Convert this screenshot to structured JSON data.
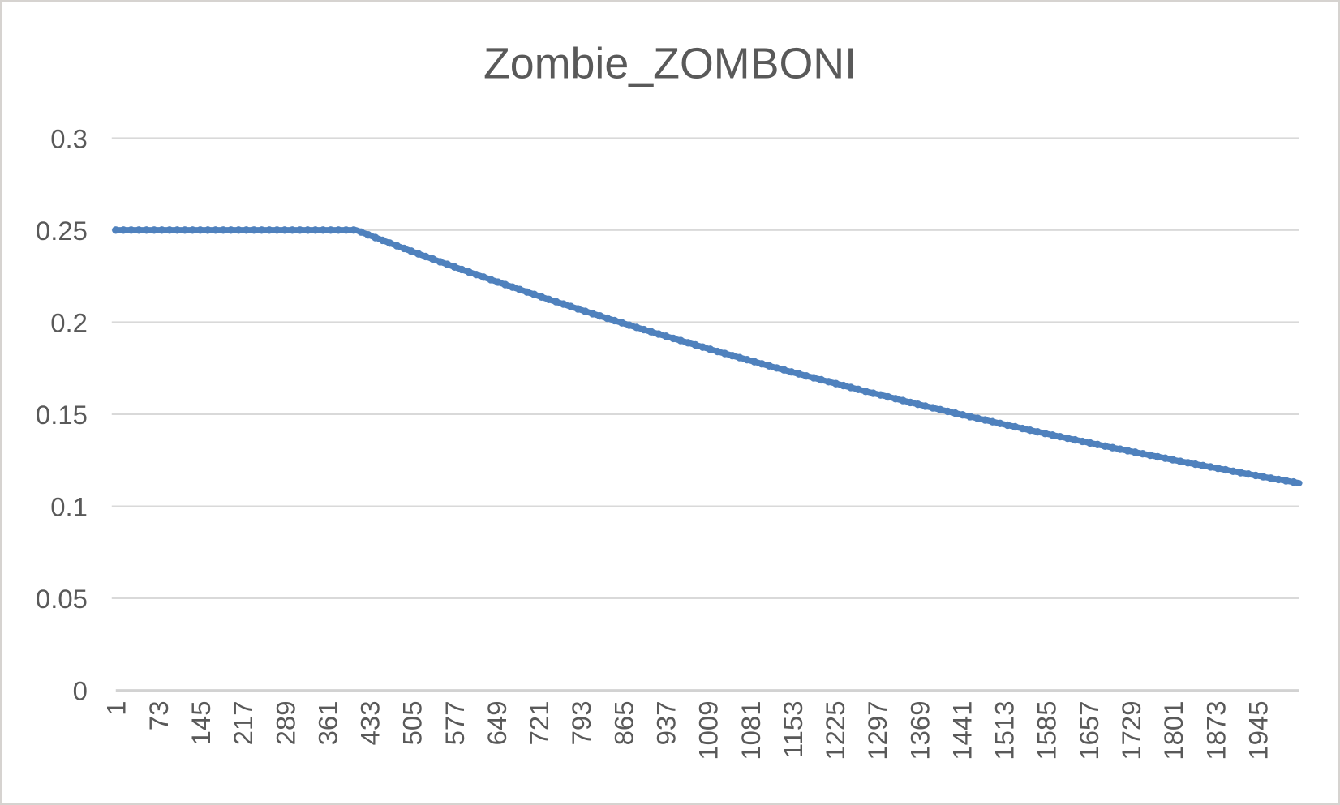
{
  "window": {
    "background_color": "#FFFFFF",
    "border_color": "#D6D3D0"
  },
  "chart": {
    "title": "Zombie_ZOMBONI",
    "title_color": "#595959",
    "label_color": "#595959",
    "line_color": "#4F81BD",
    "gridline_color": "#D9D9D9",
    "axis_line_color": "#D2D2D2"
  },
  "chart_data": {
    "type": "line",
    "title": "Zombie_ZOMBONI",
    "xlabel": "",
    "ylabel": "",
    "legend": "none",
    "grid": true,
    "xlim": [
      1,
      2016
    ],
    "ylim": [
      0,
      0.3
    ],
    "y_ticks": [
      {
        "value": 0,
        "label": "0"
      },
      {
        "value": 0.05,
        "label": "0.05"
      },
      {
        "value": 0.1,
        "label": "0.1"
      },
      {
        "value": 0.15,
        "label": "0.15"
      },
      {
        "value": 0.2,
        "label": "0.2"
      },
      {
        "value": 0.25,
        "label": "0.25"
      },
      {
        "value": 0.3,
        "label": "0.3"
      }
    ],
    "x_tick_interval": 72,
    "x_tick_labels": [
      "1",
      "73",
      "145",
      "217",
      "289",
      "361",
      "433",
      "505",
      "577",
      "649",
      "721",
      "793",
      "865",
      "937",
      "1009",
      "1081",
      "1153",
      "1225",
      "1297",
      "1369",
      "1441",
      "1513",
      "1585",
      "1657",
      "1729",
      "1801",
      "1873",
      "1945"
    ],
    "x_tick_label_rotation_deg": -90,
    "series": [
      {
        "name": "Zombie_ZOMBONI",
        "description": "flat at 0.25 until x~410, then smooth exponential-like decay to ~0.113 at x~2016",
        "points": [
          [
            1,
            0.25
          ],
          [
            100,
            0.25
          ],
          [
            200,
            0.25
          ],
          [
            300,
            0.25
          ],
          [
            410,
            0.25
          ],
          [
            446,
            0.2456
          ],
          [
            482,
            0.2412
          ],
          [
            518,
            0.2369
          ],
          [
            554,
            0.2327
          ],
          [
            590,
            0.2286
          ],
          [
            626,
            0.2246
          ],
          [
            662,
            0.2206
          ],
          [
            698,
            0.2167
          ],
          [
            734,
            0.2128
          ],
          [
            770,
            0.2091
          ],
          [
            806,
            0.2053
          ],
          [
            842,
            0.2017
          ],
          [
            878,
            0.1981
          ],
          [
            914,
            0.1946
          ],
          [
            950,
            0.1912
          ],
          [
            986,
            0.1878
          ],
          [
            1022,
            0.1844
          ],
          [
            1058,
            0.1812
          ],
          [
            1094,
            0.178
          ],
          [
            1130,
            0.1748
          ],
          [
            1166,
            0.1717
          ],
          [
            1202,
            0.1687
          ],
          [
            1238,
            0.1657
          ],
          [
            1274,
            0.1627
          ],
          [
            1310,
            0.1599
          ],
          [
            1346,
            0.157
          ],
          [
            1382,
            0.1542
          ],
          [
            1418,
            0.1515
          ],
          [
            1454,
            0.1488
          ],
          [
            1490,
            0.1462
          ],
          [
            1526,
            0.1436
          ],
          [
            1562,
            0.141
          ],
          [
            1598,
            0.1385
          ],
          [
            1634,
            0.1361
          ],
          [
            1670,
            0.1337
          ],
          [
            1706,
            0.1313
          ],
          [
            1742,
            0.129
          ],
          [
            1778,
            0.1267
          ],
          [
            1814,
            0.1244
          ],
          [
            1850,
            0.1222
          ],
          [
            1886,
            0.1201
          ],
          [
            1922,
            0.1179
          ],
          [
            1958,
            0.1158
          ],
          [
            1994,
            0.1138
          ],
          [
            2016,
            0.1126
          ]
        ]
      }
    ]
  }
}
